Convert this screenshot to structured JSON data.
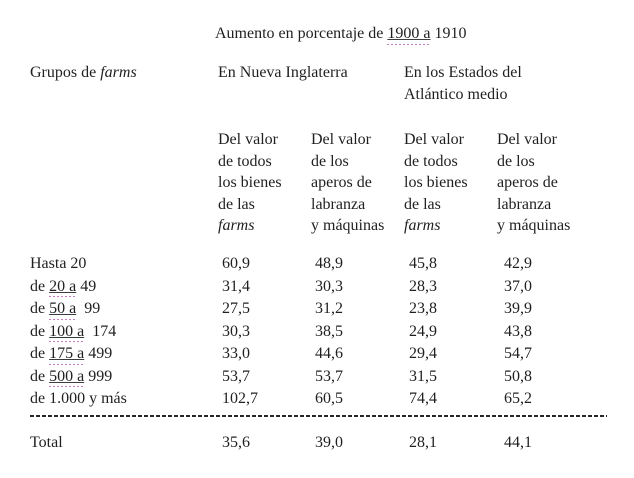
{
  "page": {
    "background_color": "#ffffff",
    "text_color": "#1f1f1f",
    "proofing_underline_color": "#cb7bcb"
  },
  "title": {
    "prefix": "Aumento en porcentaje de ",
    "underlined": "1900 a",
    "suffix": " 1910"
  },
  "group_header": {
    "row_label_prefix": "Grupos de ",
    "row_label_italic": "farms",
    "new_england": "En Nueva Inglaterra",
    "mid_atlantic": "En los Estados del\nAtlántico medio"
  },
  "column_headers": [
    {
      "top": "Del valor\nde todos\nlos bienes\nde las\n",
      "italic_line": "farms"
    },
    {
      "top": "Del valor\nde los\naperos de\nlabranza\ny máquinas",
      "italic_line": ""
    },
    {
      "top": "Del valor\nde todos\nlos bienes\nde las\n",
      "italic_line": "farms"
    },
    {
      "top": "Del valor\nde los\naperos de\nlabranza\ny máquinas",
      "italic_line": ""
    }
  ],
  "rows": [
    {
      "prefix": "Hasta 20",
      "underlined": "",
      "suffix": "",
      "values": [
        "60,9",
        "48,9",
        "45,8",
        "42,9"
      ]
    },
    {
      "prefix": "de ",
      "underlined": "20 a",
      "suffix": " 49",
      "values": [
        "31,4",
        "30,3",
        "28,3",
        "37,0"
      ]
    },
    {
      "prefix": "de ",
      "underlined": "50 a",
      "suffix": "  99",
      "values": [
        "27,5",
        "31,2",
        "23,8",
        "39,9"
      ]
    },
    {
      "prefix": "de ",
      "underlined": "100 a",
      "suffix": "  174",
      "values": [
        "30,3",
        "38,5",
        "24,9",
        "43,8"
      ]
    },
    {
      "prefix": "de ",
      "underlined": "175 a",
      "suffix": " 499",
      "values": [
        "33,0",
        "44,6",
        "29,4",
        "54,7"
      ]
    },
    {
      "prefix": "de ",
      "underlined": "500 a",
      "suffix": " 999",
      "values": [
        "53,7",
        "53,7",
        "31,5",
        "50,8"
      ]
    },
    {
      "prefix": "de 1.000 y más",
      "underlined": "",
      "suffix": "",
      "values": [
        "102,7",
        "60,5",
        "74,4",
        "65,2"
      ]
    }
  ],
  "total": {
    "label": "Total",
    "values": [
      "35,6",
      "39,0",
      "28,1",
      "44,1"
    ]
  }
}
